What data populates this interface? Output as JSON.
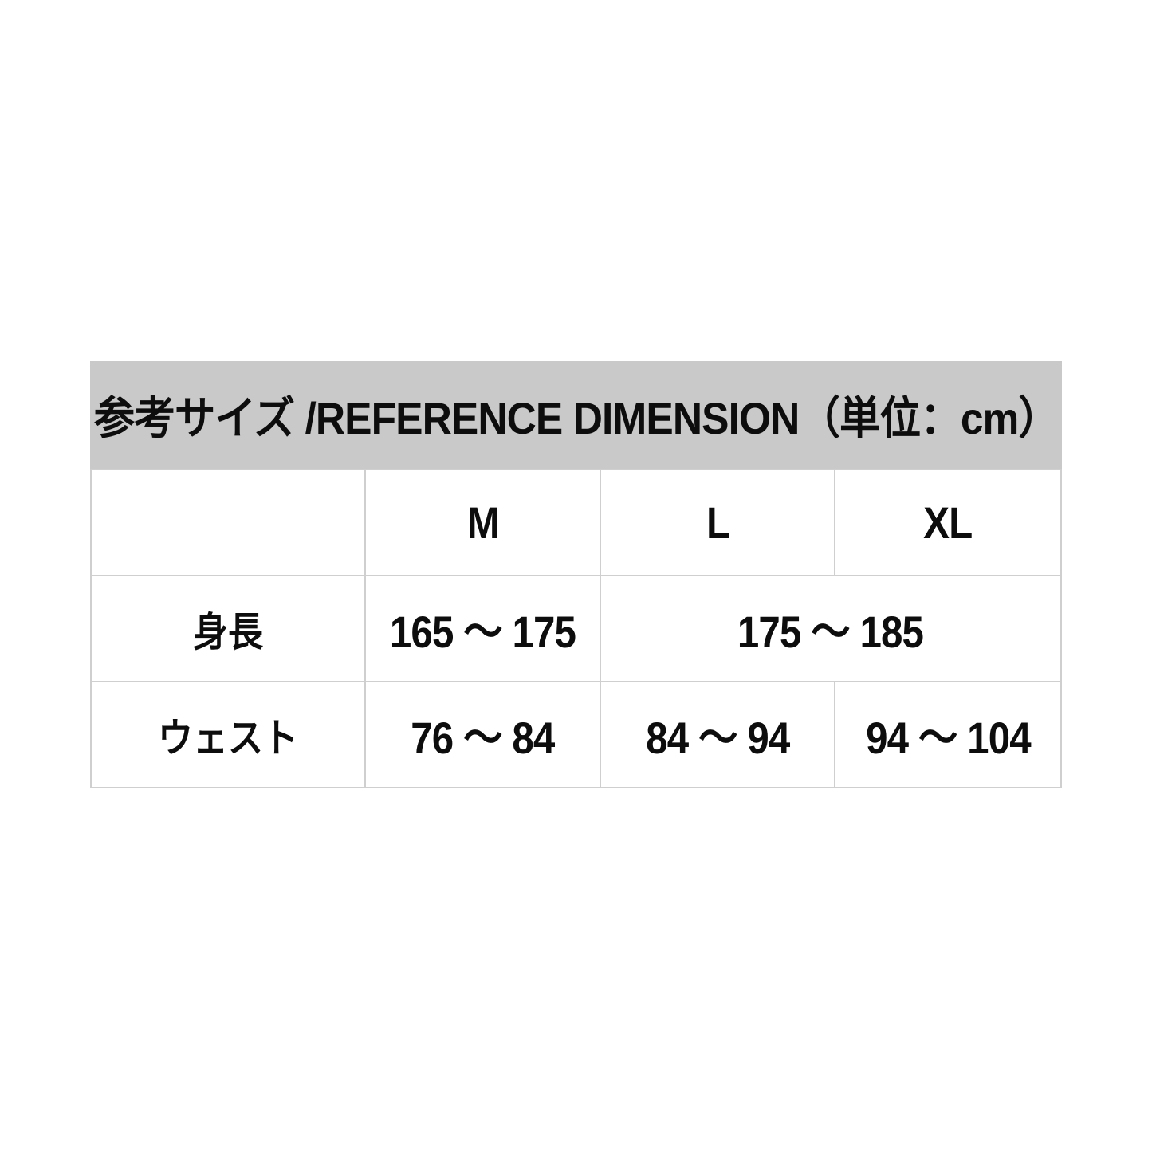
{
  "size_chart": {
    "title": "参考サイズ /REFERENCE DIMENSION（単位：cm）",
    "unit_label": "単位：cm",
    "title_bg_color": "#c9c9c9",
    "border_color": "#cfcfcf",
    "text_color": "#0d0d0d",
    "columns": [
      "",
      "M",
      "L",
      "XL"
    ],
    "rows": [
      {
        "label": "身長",
        "cells": [
          {
            "text": "165 ～ 175"
          },
          {
            "text": "175 ～ 185"
          }
        ]
      },
      {
        "label": "ウェスト",
        "cells": [
          {
            "text": "76 ～ 84"
          },
          {
            "text": "84 ～ 94"
          },
          {
            "text": "94 ～ 104"
          }
        ]
      }
    ]
  },
  "chart_data": {
    "type": "table",
    "title": "参考サイズ /REFERENCE DIMENSION（単位：cm）",
    "unit": "cm",
    "columns": [
      "",
      "M",
      "L",
      "XL"
    ],
    "rows": [
      [
        "身長",
        "165 ～ 175",
        "175 ～ 185",
        "175 ～ 185"
      ],
      [
        "ウェスト",
        "76 ～ 84",
        "84 ～ 94",
        "94 ～ 104"
      ]
    ],
    "merges": [
      {
        "row": "身長",
        "columns": [
          "L",
          "XL"
        ],
        "value": "175 ～ 185"
      }
    ],
    "layout_hints": {
      "title_background": "#c9c9c9",
      "grid": true,
      "grid_color": "#cfcfcf",
      "background": "#ffffff"
    }
  }
}
